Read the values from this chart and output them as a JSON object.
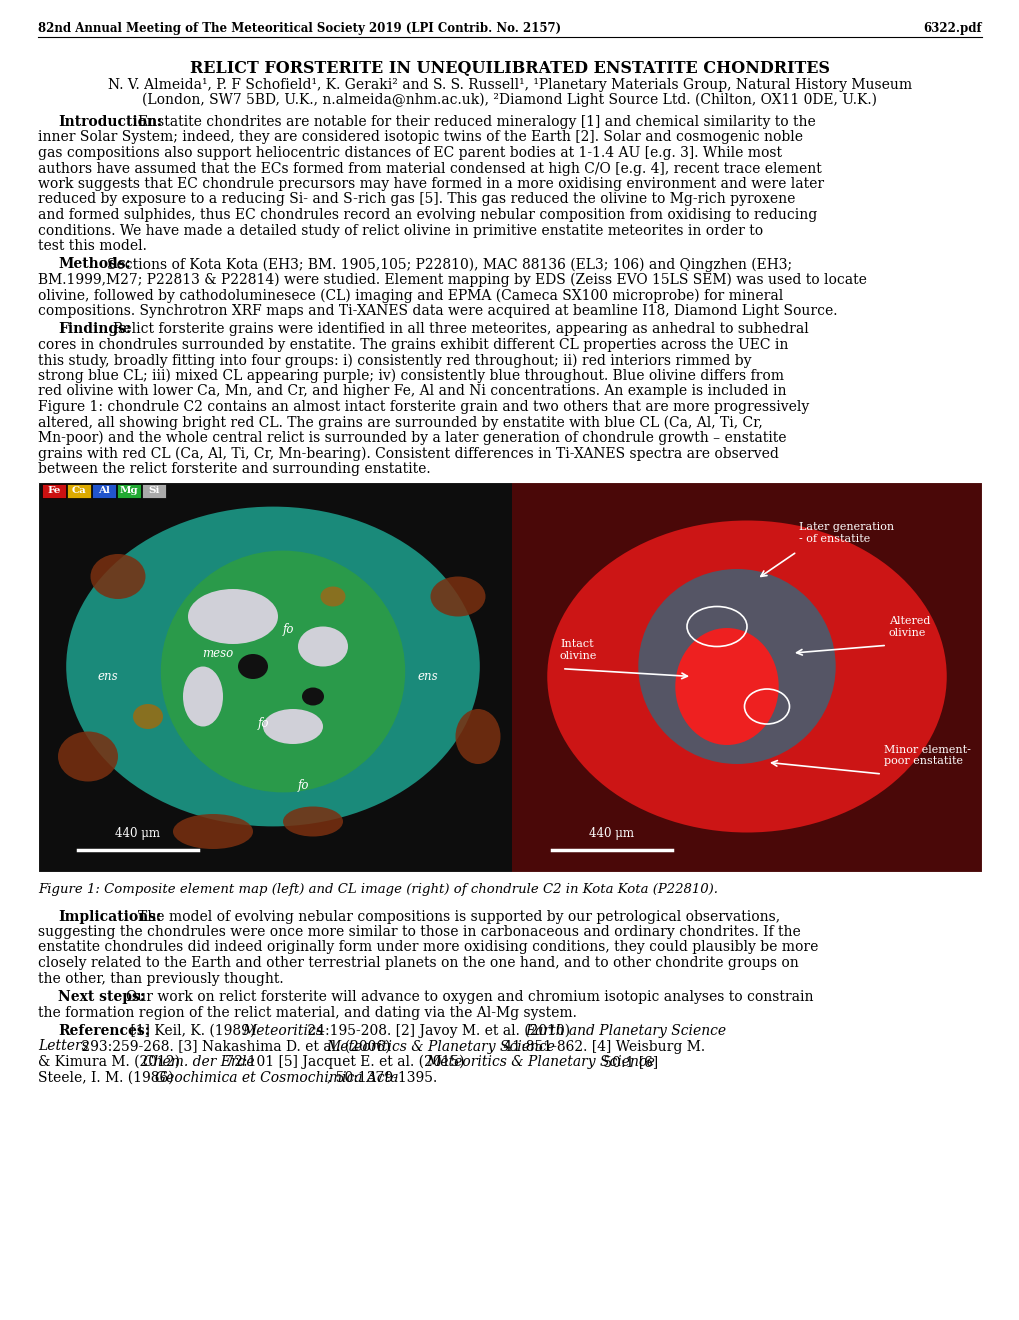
{
  "header_left": "82nd Annual Meeting of The Meteoritical Society 2019 (LPI Contrib. No. 2157)",
  "header_right": "6322.pdf",
  "title": "RELICT FORSTERITE IN UNEQUILIBRATED ENSTATITE CHONDRITES",
  "authors_line1": "N. V. Almeida¹, P. F Schofield¹, K. Geraki² and S. S. Russell¹, ¹Planetary Materials Group, Natural History Museum",
  "authors_line2": "(London, SW7 5BD, U.K., n.almeida@nhm.ac.uk), ²Diamond Light Source Ltd. (Chilton, OX11 0DE, U.K.)",
  "intro_bold": "Introduction:",
  "intro_text": " Enstatite chondrites are notable for their reduced mineralogy [1] and chemical similarity to the inner Solar System; indeed, they are considered isotopic twins of the Earth [2]. Solar and cosmogenic noble gas compositions also support heliocentric distances of EC parent bodies at 1-1.4 AU  [e.g. 3]. While most authors have assumed that the ECs formed from material condensed at high C/O [e.g. 4], recent trace element work suggests that EC chondrule precursors may have formed in a more oxidising environment and were later reduced by exposure to a reducing Si- and S-rich gas [5]. This gas reduced the olivine to Mg-rich pyroxene and formed sulphides, thus EC chondrules record an evolving nebular composition from oxidising to reducing conditions. We have made a detailed study of relict olivine in primitive enstatite meteorites in order to test this model.",
  "methods_bold": "Methods:",
  "methods_text": " Sections of Kota Kota (EH3; BM. 1905,105; P22810), MAC 88136 (EL3; 106) and Qingzhen (EH3; BM.1999,M27; P22813 & P22814) were studied. Element mapping by EDS (Zeiss EVO 15LS SEM) was used to locate olivine, followed by cathodoluminesece (CL) imaging and EPMA (Cameca SX100 microprobe) for mineral compositions. Synchrotron XRF maps and Ti-XANES data were acquired at beamline I18, Diamond Light Source.",
  "findings_bold": "Findings:",
  "findings_text": " Relict forsterite grains were identified in all three meteorites, appearing as anhedral to subhedral cores in chondrules surrounded by enstatite. The grains exhibit different CL properties across the UEC in this study, broadly fitting into four groups: i) consistently red throughout; ii) red interiors rimmed by strong blue CL; iii) mixed CL appearing purple; iv) consistently blue throughout. Blue olivine differs from red olivine with lower Ca, Mn, and Cr, and higher Fe, Al and Ni concentrations. An example is included in Figure 1: chondrule C2 contains an almost intact forsterite grain and two others that are more progressively altered, all showing bright red CL. The grains are surrounded by enstatite with blue CL (Ca, Al, Ti, Cr, Mn-poor) and the whole central relict is surrounded by a later generation of chondrule growth – enstatite grains with red CL (Ca, Al, Ti, Cr, Mn-bearing). Consistent differences in Ti-XANES spectra are observed between the relict forsterite and surrounding enstatite.",
  "figure_caption": "Figure 1: Composite element map (left) and CL image (right) of chondrule C2 in Kota Kota (P22810).",
  "implications_bold": "Implications:",
  "implications_text": " The model of evolving nebular compositions is supported by our petrological observations, suggesting the chondrules were once more similar to those in carbonaceous and ordinary chondrites. If the enstatite chondrules did indeed originally form under more oxidising conditions, they could plausibly be more closely related to the Earth and other terrestrial planets on the one hand, and to other chondrite groups on the other, than previously thought.",
  "nextsteps_bold": "Next steps:",
  "nextsteps_text": " Our work on relict forsterite will advance to oxygen and chromium isotopic analyses to constrain the formation region of the relict material, and dating via the Al-Mg system.",
  "ref_bold": "References:",
  "ref_line1_pre": " [1] Keil, K. (1989) ",
  "ref_line1_ital": "Meteoritics",
  "ref_line1_post": " 24:195-208. [2] Javoy M. et al. (2010) ",
  "ref_line1_ital2": "Earth and Planetary Science",
  "ref_line2_pre": "Letters",
  "ref_line2_post": " 293:259-268. [3] Nakashima D. et al. (2006) ",
  "ref_line2_ital": "Meteoritics & Planetary Science",
  "ref_line2_post2": " 41:851-862. [4] Weisburg M.",
  "ref_line3_pre": "& Kimura M. (2012) ",
  "ref_line3_ital": "Chem. der Erde",
  "ref_line3_post": " 72:101 [5] Jacquet E. et al. (2015) ",
  "ref_line3_ital2": "Meteoritics & Planetary Science",
  "ref_line3_post2": " 50:1 [6]",
  "ref_line4_pre": "Steele, I. M. (1986) ",
  "ref_line4_ital": "Geochimica et Cosmochimica Acta",
  "ref_line4_post": ", 50:1379-1395.",
  "bg_color": "#ffffff"
}
